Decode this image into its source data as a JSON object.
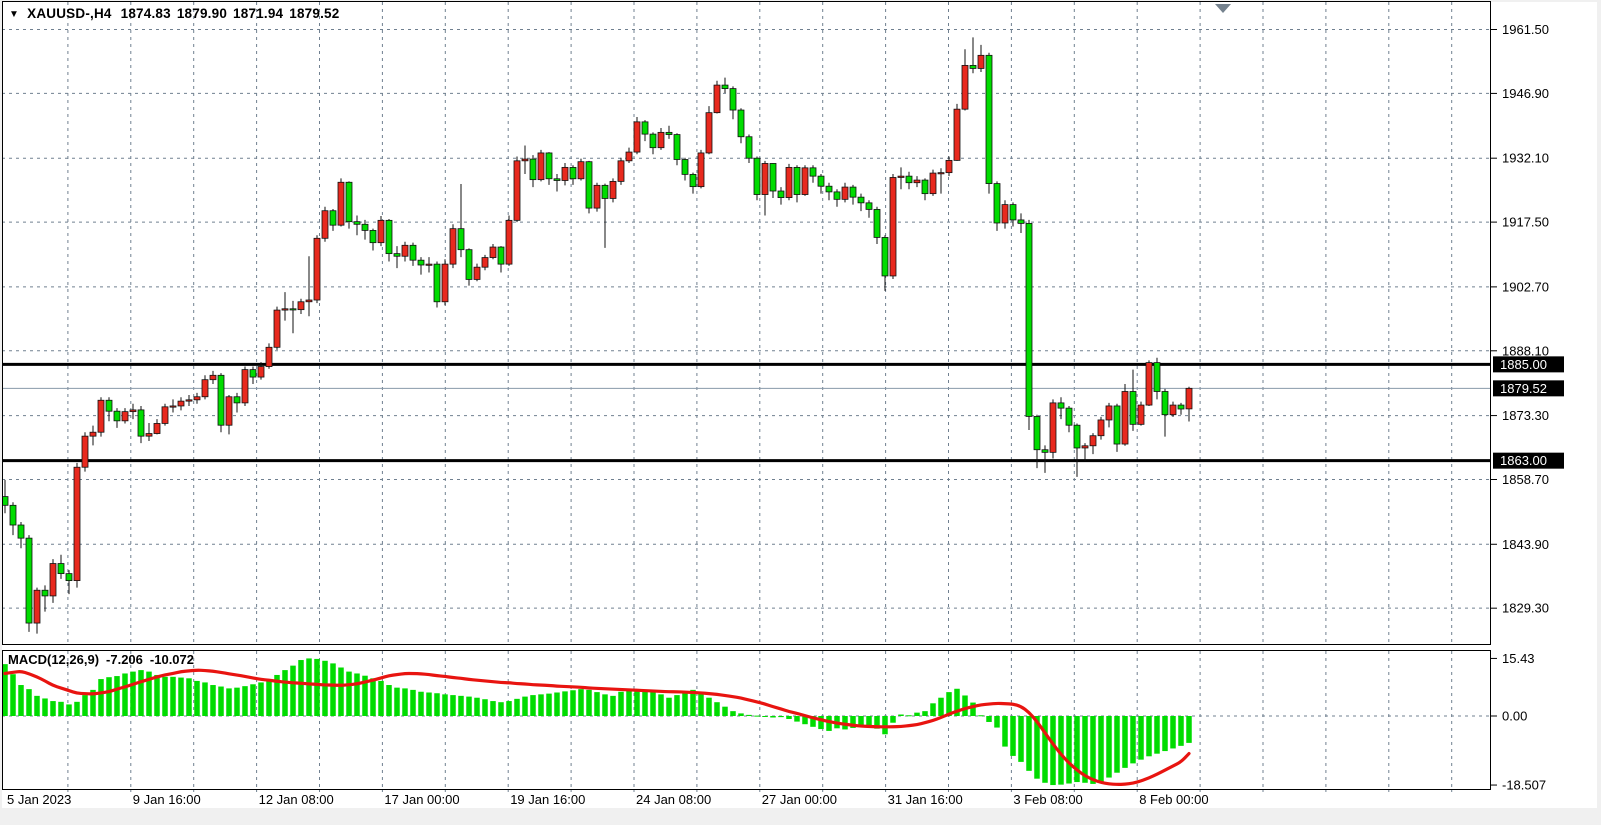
{
  "header": {
    "dropdown_icon": "▼",
    "symbol_period": "XAUUSD-,H4",
    "open": "1874.83",
    "high": "1879.90",
    "low": "1871.94",
    "close": "1879.52"
  },
  "indicator_label": {
    "name": "MACD(12,26,9)",
    "main_value": "-7.206",
    "signal_value": "-10.072"
  },
  "price_axis": {
    "tick_labels": [
      "1961.50",
      "1946.90",
      "1932.10",
      "1917.50",
      "1902.70",
      "1888.10",
      "1873.30",
      "1858.70",
      "1843.90",
      "1829.30"
    ],
    "badges": [
      {
        "id": "hline-upper",
        "label": "1885.00",
        "price": 1885.0
      },
      {
        "id": "current-price",
        "label": "1879.52",
        "price": 1879.52
      },
      {
        "id": "hline-lower",
        "label": "1863.00",
        "price": 1863.0
      }
    ]
  },
  "macd_axis": {
    "labels": [
      {
        "text": "15.43",
        "value": 15.43
      },
      {
        "text": "0.00",
        "value": 0
      },
      {
        "text": "-18.507",
        "value": -18.507
      }
    ]
  },
  "time_axis": [
    {
      "x": 5,
      "label": "5 Jan 2023"
    },
    {
      "x": 130.8,
      "label": "9 Jan 16:00"
    },
    {
      "x": 256.6,
      "label": "12 Jan 08:00"
    },
    {
      "x": 382.4,
      "label": "17 Jan 00:00"
    },
    {
      "x": 508.2,
      "label": "19 Jan 16:00"
    },
    {
      "x": 634.0,
      "label": "24 Jan 08:00"
    },
    {
      "x": 759.8,
      "label": "27 Jan 00:00"
    },
    {
      "x": 885.6,
      "label": "31 Jan 16:00"
    },
    {
      "x": 1011.4,
      "label": "3 Feb 08:00"
    },
    {
      "x": 1137.2,
      "label": "8 Feb 00:00"
    }
  ],
  "colors": {
    "background": "#ffffff",
    "frame": "#f0f0f0",
    "grid": "#708090",
    "up_candle": "#e8291e",
    "down_candle": "#00dc00",
    "wick": "#111111",
    "hline": "#000000",
    "current_price_line": "#8899aa",
    "macd_histogram": "#00dc00",
    "macd_signal": "#e81410",
    "badge_bg": "#000000",
    "badge_text": "#ffffff",
    "shift_marker": "#75828e",
    "text": "#000000"
  },
  "chart_data": {
    "type": "candlestick_with_macd",
    "symbol": "XAUUSD-",
    "timeframe": "H4",
    "title": "XAUUSD-,H4  1874.83 1879.90 1871.94 1879.52",
    "current_bar": {
      "open": 1874.83,
      "high": 1879.9,
      "low": 1871.94,
      "close": 1879.52
    },
    "ylim_main": [
      1820.8,
      1968.2
    ],
    "price_ticks": [
      1961.5,
      1946.9,
      1932.1,
      1917.5,
      1902.7,
      1888.1,
      1873.3,
      1858.7,
      1843.9,
      1829.3
    ],
    "hlines": [
      1885.0,
      1863.0
    ],
    "current_price": 1879.52,
    "grid": true,
    "legend_position": "top-left",
    "candles": [
      [
        1854.8,
        1858.6,
        1851.0,
        1852.8
      ],
      [
        1852.8,
        1853.5,
        1846.0,
        1848.3
      ],
      [
        1848.3,
        1849.0,
        1843.0,
        1845.3
      ],
      [
        1845.3,
        1846.0,
        1823.9,
        1825.9
      ],
      [
        1825.9,
        1834.0,
        1823.5,
        1833.4
      ],
      [
        1833.4,
        1834.5,
        1828.5,
        1832.1
      ],
      [
        1832.1,
        1840.5,
        1830.5,
        1839.5
      ],
      [
        1839.5,
        1841.5,
        1836.0,
        1837.2
      ],
      [
        1837.2,
        1838.0,
        1832.5,
        1835.6
      ],
      [
        1835.6,
        1862.5,
        1834.0,
        1861.5
      ],
      [
        1861.5,
        1869.5,
        1860.5,
        1868.6
      ],
      [
        1868.6,
        1871.0,
        1866.5,
        1869.5
      ],
      [
        1869.5,
        1877.5,
        1868.5,
        1876.8
      ],
      [
        1876.8,
        1877.5,
        1872.0,
        1874.3
      ],
      [
        1874.3,
        1875.0,
        1870.5,
        1872.1
      ],
      [
        1872.1,
        1875.0,
        1871.5,
        1874.2
      ],
      [
        1874.2,
        1876.0,
        1872.5,
        1874.6
      ],
      [
        1874.6,
        1875.5,
        1867.0,
        1868.6
      ],
      [
        1868.6,
        1871.6,
        1867.5,
        1869.2
      ],
      [
        1869.2,
        1872.5,
        1869.0,
        1871.5
      ],
      [
        1871.5,
        1876.0,
        1871.0,
        1875.3
      ],
      [
        1875.3,
        1877.0,
        1874.0,
        1875.5
      ],
      [
        1875.5,
        1877.5,
        1874.5,
        1876.6
      ],
      [
        1876.6,
        1878.0,
        1875.5,
        1876.9
      ],
      [
        1876.9,
        1878.5,
        1876.0,
        1877.6
      ],
      [
        1877.6,
        1882.5,
        1877.0,
        1881.5
      ],
      [
        1881.5,
        1883.5,
        1880.5,
        1882.5
      ],
      [
        1882.5,
        1883.0,
        1869.5,
        1871.1
      ],
      [
        1871.1,
        1878.0,
        1869.0,
        1877.6
      ],
      [
        1877.6,
        1878.5,
        1874.0,
        1876.2
      ],
      [
        1876.2,
        1884.5,
        1875.5,
        1883.8
      ],
      [
        1883.8,
        1884.5,
        1880.5,
        1882.1
      ],
      [
        1882.1,
        1885.5,
        1881.5,
        1884.5
      ],
      [
        1884.5,
        1889.8,
        1884.0,
        1888.9
      ],
      [
        1888.9,
        1898.2,
        1888.3,
        1897.4
      ],
      [
        1897.4,
        1901.5,
        1895.0,
        1897.7
      ],
      [
        1897.7,
        1899.5,
        1892.1,
        1897.5
      ],
      [
        1897.5,
        1900.0,
        1896.5,
        1899.3
      ],
      [
        1899.3,
        1909.7,
        1896.0,
        1899.7
      ],
      [
        1899.7,
        1914.5,
        1899.0,
        1913.8
      ],
      [
        1913.8,
        1921.0,
        1913.0,
        1920.1
      ],
      [
        1920.1,
        1920.5,
        1915.5,
        1916.8
      ],
      [
        1916.8,
        1927.5,
        1916.5,
        1926.6
      ],
      [
        1926.6,
        1926.8,
        1916.0,
        1917.6
      ],
      [
        1917.6,
        1919.0,
        1914.5,
        1917.0
      ],
      [
        1917.0,
        1918.0,
        1913.5,
        1915.6
      ],
      [
        1915.6,
        1916.0,
        1911.0,
        1912.8
      ],
      [
        1912.8,
        1918.9,
        1912.0,
        1917.9
      ],
      [
        1917.9,
        1918.2,
        1908.5,
        1910.3
      ],
      [
        1910.3,
        1912.0,
        1907.0,
        1909.7
      ],
      [
        1909.7,
        1913.0,
        1908.5,
        1912.2
      ],
      [
        1912.2,
        1912.8,
        1907.5,
        1908.8
      ],
      [
        1908.8,
        1909.5,
        1905.5,
        1907.7
      ],
      [
        1907.7,
        1909.5,
        1906.0,
        1907.9
      ],
      [
        1907.9,
        1908.5,
        1898.0,
        1899.3
      ],
      [
        1899.3,
        1909.0,
        1898.5,
        1907.9
      ],
      [
        1907.9,
        1917.0,
        1907.0,
        1916.0
      ],
      [
        1916.0,
        1926.2,
        1909.5,
        1911.2
      ],
      [
        1911.2,
        1911.5,
        1903.0,
        1904.4
      ],
      [
        1904.4,
        1908.0,
        1904.0,
        1907.2
      ],
      [
        1907.2,
        1910.0,
        1906.5,
        1909.4
      ],
      [
        1909.4,
        1912.5,
        1909.0,
        1911.8
      ],
      [
        1911.8,
        1912.0,
        1906.0,
        1907.9
      ],
      [
        1907.9,
        1919.0,
        1907.5,
        1917.9
      ],
      [
        1917.9,
        1932.5,
        1917.5,
        1931.5
      ],
      [
        1931.5,
        1935.0,
        1928.5,
        1931.9
      ],
      [
        1931.9,
        1932.8,
        1925.5,
        1927.2
      ],
      [
        1927.2,
        1934.0,
        1926.8,
        1933.3
      ],
      [
        1933.3,
        1933.5,
        1926.0,
        1927.4
      ],
      [
        1927.4,
        1928.5,
        1924.5,
        1927.0
      ],
      [
        1927.0,
        1931.0,
        1925.9,
        1930.0
      ],
      [
        1930.0,
        1930.5,
        1926.0,
        1927.4
      ],
      [
        1927.4,
        1932.0,
        1927.0,
        1931.3
      ],
      [
        1931.3,
        1931.5,
        1919.5,
        1920.7
      ],
      [
        1920.7,
        1926.5,
        1919.9,
        1925.9
      ],
      [
        1925.9,
        1926.3,
        1911.6,
        1922.9
      ],
      [
        1922.9,
        1927.5,
        1922.0,
        1926.8
      ],
      [
        1926.8,
        1932.2,
        1926.0,
        1931.5
      ],
      [
        1931.5,
        1934.5,
        1931.0,
        1933.5
      ],
      [
        1933.5,
        1941.5,
        1933.0,
        1940.4
      ],
      [
        1940.4,
        1940.8,
        1936.0,
        1937.6
      ],
      [
        1937.6,
        1938.0,
        1933.0,
        1934.5
      ],
      [
        1934.5,
        1939.0,
        1934.0,
        1938.0
      ],
      [
        1938.0,
        1939.5,
        1936.5,
        1937.5
      ],
      [
        1937.5,
        1937.8,
        1930.5,
        1931.8
      ],
      [
        1931.8,
        1932.2,
        1927.0,
        1928.4
      ],
      [
        1928.4,
        1928.8,
        1924.0,
        1925.6
      ],
      [
        1925.6,
        1934.0,
        1925.2,
        1933.3
      ],
      [
        1933.3,
        1944.0,
        1933.0,
        1942.5
      ],
      [
        1942.5,
        1949.8,
        1942.3,
        1948.8
      ],
      [
        1948.8,
        1950.5,
        1947.0,
        1948.0
      ],
      [
        1948.0,
        1948.5,
        1941.0,
        1943.1
      ],
      [
        1943.1,
        1943.5,
        1935.5,
        1937.0
      ],
      [
        1937.0,
        1937.5,
        1931.0,
        1932.1
      ],
      [
        1932.1,
        1932.5,
        1922.5,
        1923.8
      ],
      [
        1923.8,
        1931.5,
        1919.0,
        1930.9
      ],
      [
        1930.9,
        1931.0,
        1923.0,
        1924.6
      ],
      [
        1924.6,
        1925.5,
        1921.5,
        1923.1
      ],
      [
        1923.1,
        1930.8,
        1922.5,
        1930.0
      ],
      [
        1930.0,
        1930.5,
        1922.0,
        1923.8
      ],
      [
        1923.8,
        1930.5,
        1923.5,
        1929.9
      ],
      [
        1929.9,
        1930.5,
        1926.5,
        1928.0
      ],
      [
        1928.0,
        1928.5,
        1924.0,
        1925.7
      ],
      [
        1925.7,
        1926.5,
        1922.5,
        1924.4
      ],
      [
        1924.4,
        1925.0,
        1921.0,
        1922.7
      ],
      [
        1922.7,
        1926.5,
        1922.0,
        1925.5
      ],
      [
        1925.5,
        1926.0,
        1921.5,
        1923.2
      ],
      [
        1923.2,
        1924.0,
        1920.0,
        1921.9
      ],
      [
        1921.9,
        1922.5,
        1918.5,
        1920.4
      ],
      [
        1920.4,
        1921.0,
        1912.5,
        1914.0
      ],
      [
        1914.0,
        1914.5,
        1901.8,
        1905.2
      ],
      [
        1905.2,
        1928.5,
        1904.5,
        1927.7
      ],
      [
        1927.7,
        1930.0,
        1925.0,
        1928.0
      ],
      [
        1928.0,
        1929.0,
        1925.0,
        1926.5
      ],
      [
        1926.5,
        1928.0,
        1925.5,
        1927.1
      ],
      [
        1927.1,
        1927.5,
        1922.5,
        1924.0
      ],
      [
        1924.0,
        1929.5,
        1923.5,
        1928.7
      ],
      [
        1928.7,
        1929.8,
        1924.0,
        1928.8
      ],
      [
        1928.8,
        1932.5,
        1928.0,
        1931.6
      ],
      [
        1931.6,
        1944.5,
        1931.5,
        1943.3
      ],
      [
        1943.3,
        1957.0,
        1943.0,
        1953.3
      ],
      [
        1953.3,
        1959.7,
        1951.5,
        1952.6
      ],
      [
        1952.6,
        1958.0,
        1951.8,
        1955.6
      ],
      [
        1955.6,
        1956.2,
        1924.0,
        1926.3
      ],
      [
        1926.3,
        1926.8,
        1915.5,
        1917.3
      ],
      [
        1917.3,
        1922.5,
        1916.0,
        1921.5
      ],
      [
        1921.5,
        1922.0,
        1916.5,
        1918.0
      ],
      [
        1918.0,
        1919.5,
        1915.0,
        1917.2
      ],
      [
        1917.2,
        1918.0,
        1870.0,
        1873.1
      ],
      [
        1873.1,
        1873.5,
        1861.3,
        1865.5
      ],
      [
        1865.5,
        1866.5,
        1860.2,
        1864.9
      ],
      [
        1864.9,
        1877.0,
        1863.5,
        1876.2
      ],
      [
        1876.2,
        1877.5,
        1872.5,
        1875.0
      ],
      [
        1875.0,
        1875.5,
        1869.5,
        1871.1
      ],
      [
        1871.1,
        1871.5,
        1859.3,
        1865.9
      ],
      [
        1865.9,
        1867.0,
        1863.0,
        1866.4
      ],
      [
        1866.4,
        1869.3,
        1864.5,
        1868.7
      ],
      [
        1868.7,
        1873.0,
        1867.8,
        1872.3
      ],
      [
        1872.3,
        1876.2,
        1870.6,
        1875.5
      ],
      [
        1875.5,
        1876.0,
        1865.0,
        1866.8
      ],
      [
        1866.8,
        1880.5,
        1866.4,
        1878.8
      ],
      [
        1878.8,
        1883.8,
        1869.8,
        1871.3
      ],
      [
        1871.3,
        1876.5,
        1871.0,
        1875.7
      ],
      [
        1875.7,
        1885.9,
        1875.5,
        1885.4
      ],
      [
        1885.4,
        1886.5,
        1877.0,
        1878.8
      ],
      [
        1878.8,
        1879.4,
        1868.5,
        1873.5
      ],
      [
        1873.5,
        1876.5,
        1873.0,
        1875.7
      ],
      [
        1875.7,
        1876.2,
        1873.5,
        1874.8
      ],
      [
        1874.83,
        1879.9,
        1871.94,
        1879.52
      ]
    ],
    "macd": {
      "params": "12,26,9",
      "ylim": [
        -18.507,
        15.43
      ],
      "histogram": [
        13.9,
        11.2,
        8.3,
        7.2,
        5.4,
        4.7,
        4,
        3.8,
        3.1,
        3.8,
        5.6,
        7,
        9.9,
        10.4,
        10.7,
        11.4,
        11.9,
        12.3,
        11.9,
        11,
        10.5,
        10.5,
        10.3,
        10.1,
        9.4,
        9,
        8.3,
        7.9,
        7.4,
        7.6,
        8,
        8.5,
        9,
        9.4,
        11,
        12.3,
        13.5,
        15,
        15.43,
        15.3,
        14.8,
        14.1,
        13,
        11.9,
        11.4,
        10.8,
        10.1,
        9.4,
        8.3,
        7.6,
        7.4,
        7,
        6.5,
        6.3,
        6.1,
        5.8,
        5.6,
        5.4,
        5.2,
        4.9,
        4.5,
        4,
        3.7,
        4,
        4.6,
        5.2,
        5.6,
        5.8,
        6,
        6.3,
        6.6,
        6.9,
        7.2,
        7,
        6.4,
        5.8,
        5.4,
        6.5,
        6.7,
        7,
        7,
        6.5,
        5.8,
        4.9,
        5.6,
        6.7,
        7,
        6.1,
        4.9,
        3.7,
        2.5,
        1.3,
        0.7,
        0.3,
        0.1,
        -0.2,
        -0.4,
        -0.3,
        -0.8,
        -1.5,
        -2.2,
        -2.9,
        -3.5,
        -4,
        -3.3,
        -3.6,
        -3.2,
        -2.8,
        -2.6,
        -3.4,
        -4.9,
        -1.8,
        0.4,
        0.2,
        0.9,
        1.3,
        3.4,
        4.9,
        6.4,
        7.3,
        5.5,
        3.6,
        0.2,
        -1.6,
        -3.1,
        -8.2,
        -10.7,
        -12.3,
        -14.7,
        -16.8,
        -17.9,
        -18.507,
        -18.4,
        -18.1,
        -17.7,
        -17.9,
        -18.2,
        -17.6,
        -16.5,
        -15.2,
        -13.9,
        -12.7,
        -11.7,
        -10.8,
        -10.1,
        -9.4,
        -8.7,
        -8,
        -7.206
      ],
      "signal": [
        11.4,
        11.7,
        12,
        11.3,
        10.5,
        9.4,
        8.2,
        7.5,
        6.8,
        6.1,
        6,
        5.9,
        6.2,
        6.5,
        7.2,
        7.8,
        8.5,
        9.2,
        9.8,
        10.5,
        11,
        11.4,
        11.9,
        12.1,
        12.3,
        12.2,
        12,
        11.7,
        11.3,
        11,
        10.6,
        10.2,
        9.8,
        9.6,
        9.3,
        9.1,
        8.9,
        8.8,
        8.6,
        8.5,
        8.3,
        8.3,
        8.2,
        8.4,
        8.6,
        9.1,
        9.6,
        10.2,
        10.8,
        11.1,
        11.4,
        11.4,
        11.3,
        11.1,
        10.8,
        10.6,
        10.3,
        10.1,
        9.8,
        9.6,
        9.4,
        9.2,
        9,
        8.9,
        8.7,
        8.6,
        8.4,
        8.3,
        8.2,
        8,
        7.9,
        7.8,
        7.7,
        7.5,
        7.4,
        7.3,
        7.2,
        7.1,
        7,
        6.9,
        6.8,
        6.7,
        6.6,
        6.5,
        6.5,
        6.4,
        6.3,
        6.2,
        6,
        5.8,
        5.5,
        5.2,
        4.8,
        4.3,
        3.8,
        3.2,
        2.5,
        1.9,
        1.2,
        0.7,
        0.1,
        -0.5,
        -1,
        -1.5,
        -1.9,
        -2.2,
        -2.5,
        -2.7,
        -2.8,
        -2.9,
        -2.9,
        -2.9,
        -2.8,
        -2.6,
        -2.3,
        -1.8,
        -1.2,
        -0.4,
        0.5,
        1.3,
        2,
        2.5,
        3,
        3.2,
        3.4,
        3.3,
        3.2,
        2.6,
        1,
        -1.5,
        -4.5,
        -7.5,
        -10.3,
        -12.6,
        -14.5,
        -16,
        -17.1,
        -17.8,
        -18.2,
        -18.35,
        -18.3,
        -18,
        -17.4,
        -16.6,
        -15.6,
        -14.5,
        -13.4,
        -12.3,
        -10.07
      ]
    }
  }
}
